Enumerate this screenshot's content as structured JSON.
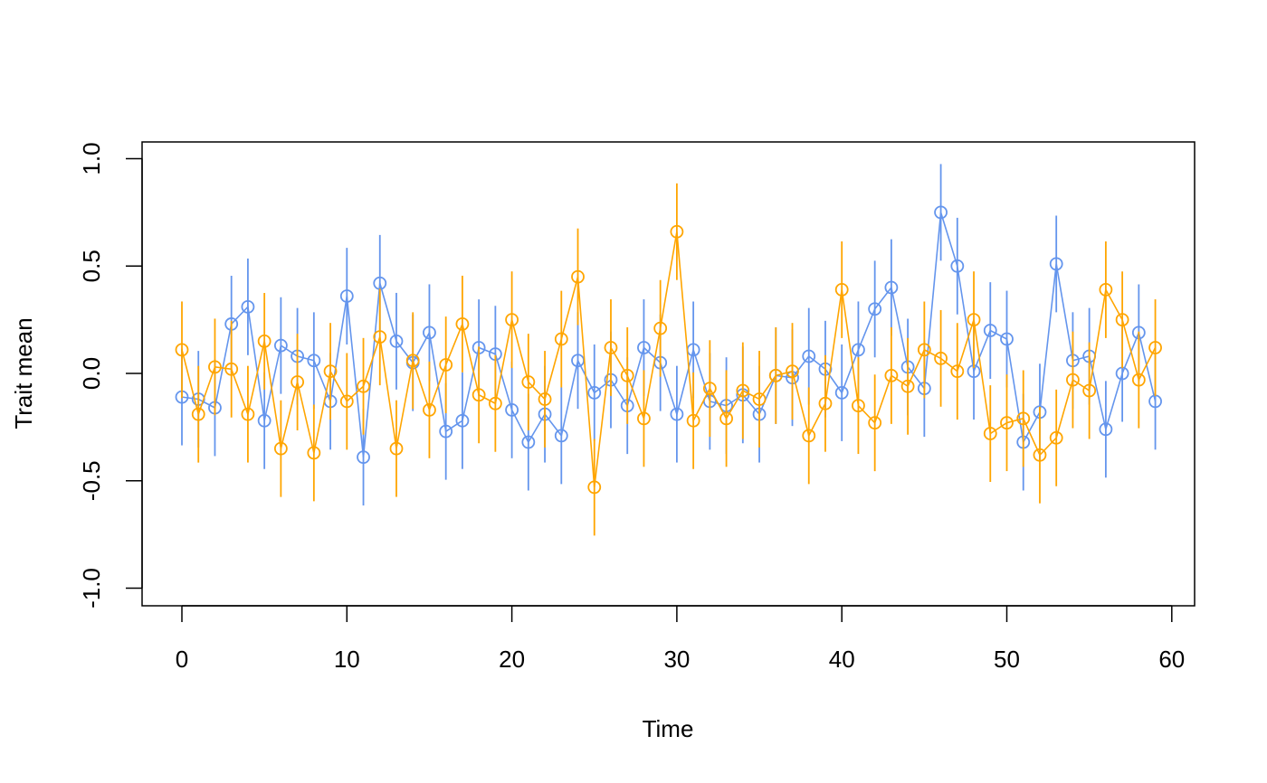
{
  "chart_data": {
    "type": "line",
    "title": "",
    "xlabel": "Time",
    "ylabel": "Trait mean",
    "xlim": [
      0,
      59
    ],
    "ylim": [
      -1.0,
      1.0
    ],
    "x_ticks": [
      0,
      10,
      20,
      30,
      40,
      50,
      60
    ],
    "x_tick_labels": [
      "0",
      "10",
      "20",
      "30",
      "40",
      "50",
      "60"
    ],
    "y_ticks": [
      -1.0,
      -0.5,
      0.0,
      0.5,
      1.0
    ],
    "y_tick_labels": [
      "-1.0",
      "-0.5",
      "0.0",
      "0.5",
      "1.0"
    ],
    "grid": false,
    "legend": "none",
    "error_bar_halfwidth": 0.225,
    "x": [
      0,
      1,
      2,
      3,
      4,
      5,
      6,
      7,
      8,
      9,
      10,
      11,
      12,
      13,
      14,
      15,
      16,
      17,
      18,
      19,
      20,
      21,
      22,
      23,
      24,
      25,
      26,
      27,
      28,
      29,
      30,
      31,
      32,
      33,
      34,
      35,
      36,
      37,
      38,
      39,
      40,
      41,
      42,
      43,
      44,
      45,
      46,
      47,
      48,
      49,
      50,
      51,
      52,
      53,
      54,
      55,
      56,
      57,
      58,
      59
    ],
    "series": [
      {
        "color": "#6495ED",
        "marker": "open-circle",
        "values": [
          -0.11,
          -0.12,
          -0.16,
          0.23,
          0.31,
          -0.22,
          0.13,
          0.08,
          0.06,
          -0.13,
          0.36,
          -0.39,
          0.42,
          0.15,
          0.05,
          0.19,
          -0.27,
          -0.22,
          0.12,
          0.09,
          -0.17,
          -0.32,
          -0.19,
          -0.29,
          0.06,
          -0.09,
          -0.03,
          -0.15,
          0.12,
          0.05,
          -0.19,
          0.11,
          -0.13,
          -0.15,
          -0.1,
          -0.19,
          -0.01,
          -0.02,
          0.08,
          0.02,
          -0.09,
          0.11,
          0.3,
          0.4,
          0.03,
          -0.07,
          0.75,
          0.5,
          0.01,
          0.2,
          0.16,
          -0.32,
          -0.18,
          0.51,
          0.06,
          0.08,
          -0.26,
          0.0,
          0.19,
          -0.13
        ]
      },
      {
        "color": "#FFA500",
        "marker": "open-circle",
        "values": [
          0.11,
          -0.19,
          0.03,
          0.02,
          -0.19,
          0.15,
          -0.35,
          -0.04,
          -0.37,
          0.01,
          -0.13,
          -0.06,
          0.17,
          -0.35,
          0.06,
          -0.17,
          0.04,
          0.23,
          -0.1,
          -0.14,
          0.25,
          -0.04,
          -0.12,
          0.16,
          0.45,
          -0.53,
          0.12,
          -0.01,
          -0.21,
          0.21,
          0.66,
          -0.22,
          -0.07,
          -0.21,
          -0.08,
          -0.12,
          -0.01,
          0.01,
          -0.29,
          -0.14,
          0.39,
          -0.15,
          -0.23,
          -0.01,
          -0.06,
          0.11,
          0.07,
          0.01,
          0.25,
          -0.28,
          -0.23,
          -0.21,
          -0.38,
          -0.3,
          -0.03,
          -0.08,
          0.39,
          0.25,
          -0.03,
          0.12
        ]
      }
    ]
  }
}
